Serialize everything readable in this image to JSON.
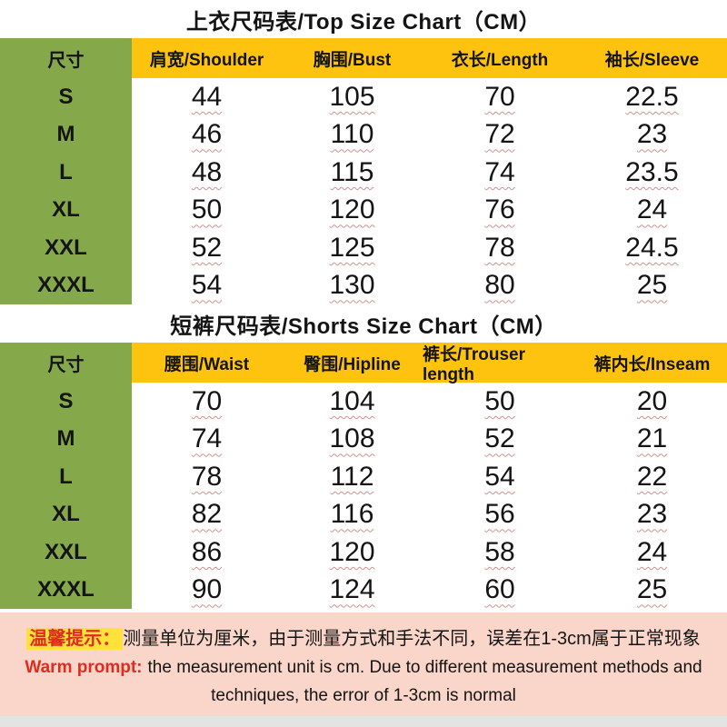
{
  "chart_data": [
    {
      "type": "table",
      "title": "上衣尺码表/Top Size Chart（CM）",
      "unit": "CM",
      "headers": [
        "尺寸",
        "肩宽/Shoulder",
        "胸围/Bust",
        "衣长/Length",
        "袖长/Sleeve"
      ],
      "rows": [
        [
          "S",
          "44",
          "105",
          "70",
          "22.5"
        ],
        [
          "M",
          "46",
          "110",
          "72",
          "23"
        ],
        [
          "L",
          "48",
          "115",
          "74",
          "23.5"
        ],
        [
          "XL",
          "50",
          "120",
          "76",
          "24"
        ],
        [
          "XXL",
          "52",
          "125",
          "78",
          "24.5"
        ],
        [
          "XXXL",
          "54",
          "130",
          "80",
          "25"
        ]
      ]
    },
    {
      "type": "table",
      "title": "短裤尺码表/Shorts Size Chart（CM）",
      "unit": "CM",
      "headers": [
        "尺寸",
        "腰围/Waist",
        "臀围/Hipline",
        "裤长/Trouser length",
        "裤内长/Inseam"
      ],
      "rows": [
        [
          "S",
          "70",
          "104",
          "50",
          "20"
        ],
        [
          "M",
          "74",
          "108",
          "52",
          "21"
        ],
        [
          "L",
          "78",
          "112",
          "54",
          "22"
        ],
        [
          "XL",
          "82",
          "116",
          "56",
          "23"
        ],
        [
          "XXL",
          "86",
          "120",
          "58",
          "24"
        ],
        [
          "XXXL",
          "90",
          "124",
          "60",
          "25"
        ]
      ]
    }
  ],
  "notice": {
    "label_zh": "温馨提示：",
    "text_zh": "测量单位为厘米，由于测量方式和手法不同，误差在1-3cm属于正常现象",
    "label_en": "Warm prompt:",
    "text_en_line1": "the measurement unit is cm. Due to different measurement methods and",
    "text_en_line2": "techniques, the error of 1-3cm is normal"
  },
  "colors": {
    "header_yellow": "#fdc30e",
    "size_column_green": "#85a94a",
    "notice_pink": "#f9d6c9",
    "highlight_yellow": "#fee13a",
    "accent_red": "#e02b20"
  }
}
